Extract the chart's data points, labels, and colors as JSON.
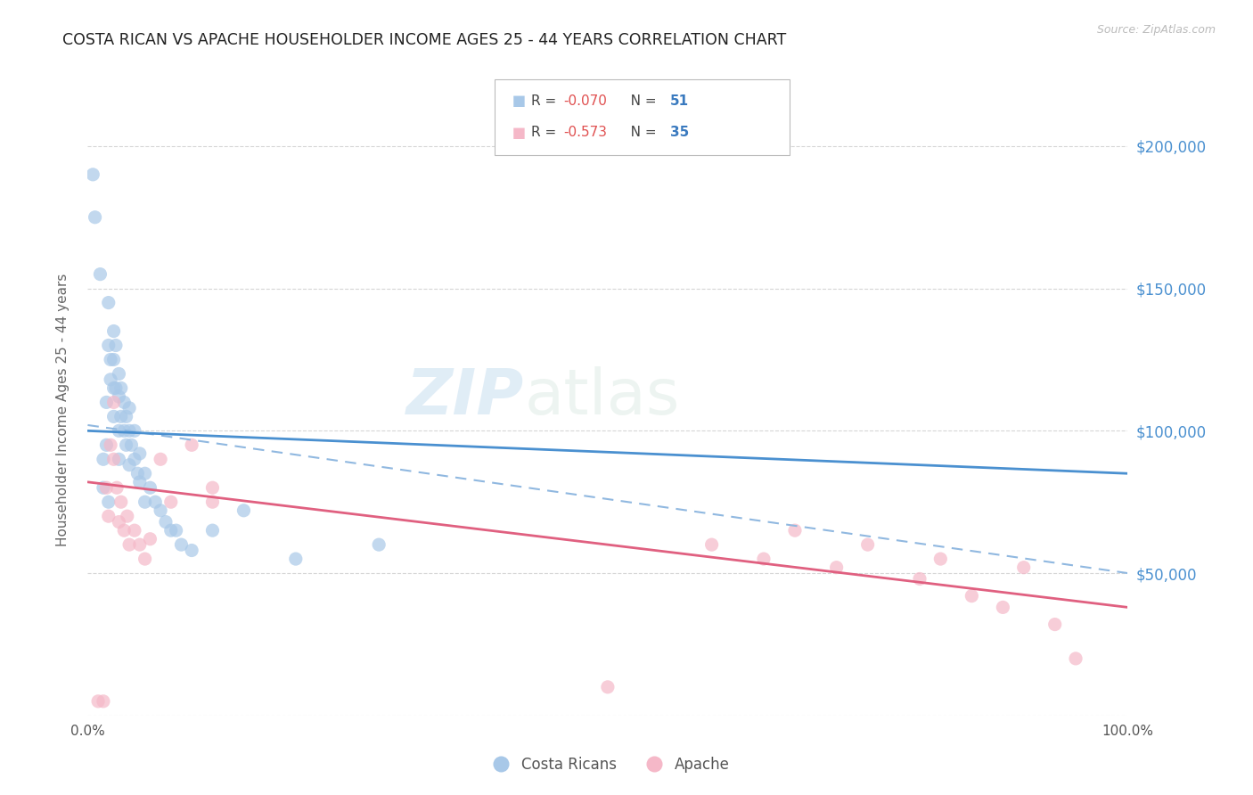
{
  "title": "COSTA RICAN VS APACHE HOUSEHOLDER INCOME AGES 25 - 44 YEARS CORRELATION CHART",
  "source": "Source: ZipAtlas.com",
  "ylabel": "Householder Income Ages 25 - 44 years",
  "legend_R1": "-0.070",
  "legend_N1": "51",
  "legend_R2": "-0.573",
  "legend_N2": "35",
  "legend_label1": "Costa Ricans",
  "legend_label2": "Apache",
  "costa_rican_color": "#a8c8e8",
  "apache_color": "#f5b8c8",
  "trendline_blue_color": "#4a90d0",
  "trendline_pink_color": "#e06080",
  "trendline_dashed_color": "#90b8e0",
  "xlim": [
    0,
    1.0
  ],
  "ylim": [
    0,
    215000
  ],
  "background_color": "#ffffff",
  "grid_color": "#cccccc",
  "watermark_zip": "ZIP",
  "watermark_atlas": "atlas",
  "costa_rican_x": [
    0.005,
    0.007,
    0.012,
    0.015,
    0.015,
    0.018,
    0.018,
    0.02,
    0.02,
    0.02,
    0.022,
    0.022,
    0.025,
    0.025,
    0.025,
    0.025,
    0.027,
    0.027,
    0.03,
    0.03,
    0.03,
    0.03,
    0.032,
    0.032,
    0.035,
    0.035,
    0.037,
    0.037,
    0.04,
    0.04,
    0.04,
    0.042,
    0.045,
    0.045,
    0.048,
    0.05,
    0.05,
    0.055,
    0.055,
    0.06,
    0.065,
    0.07,
    0.075,
    0.08,
    0.085,
    0.09,
    0.1,
    0.12,
    0.15,
    0.2,
    0.28
  ],
  "costa_rican_y": [
    190000,
    175000,
    155000,
    90000,
    80000,
    110000,
    95000,
    145000,
    130000,
    75000,
    125000,
    118000,
    135000,
    125000,
    115000,
    105000,
    130000,
    115000,
    120000,
    112000,
    100000,
    90000,
    115000,
    105000,
    110000,
    100000,
    105000,
    95000,
    108000,
    100000,
    88000,
    95000,
    100000,
    90000,
    85000,
    92000,
    82000,
    85000,
    75000,
    80000,
    75000,
    72000,
    68000,
    65000,
    65000,
    60000,
    58000,
    65000,
    72000,
    55000,
    60000
  ],
  "apache_x": [
    0.01,
    0.015,
    0.018,
    0.02,
    0.022,
    0.025,
    0.025,
    0.028,
    0.03,
    0.032,
    0.035,
    0.038,
    0.04,
    0.045,
    0.05,
    0.055,
    0.06,
    0.07,
    0.08,
    0.1,
    0.12,
    0.12,
    0.5,
    0.6,
    0.65,
    0.68,
    0.72,
    0.75,
    0.8,
    0.82,
    0.85,
    0.88,
    0.9,
    0.93,
    0.95
  ],
  "apache_y": [
    5000,
    5000,
    80000,
    70000,
    95000,
    110000,
    90000,
    80000,
    68000,
    75000,
    65000,
    70000,
    60000,
    65000,
    60000,
    55000,
    62000,
    90000,
    75000,
    95000,
    75000,
    80000,
    10000,
    60000,
    55000,
    65000,
    52000,
    60000,
    48000,
    55000,
    42000,
    38000,
    52000,
    32000,
    20000
  ],
  "blue_trendline": [
    [
      0.0,
      100000
    ],
    [
      1.0,
      85000
    ]
  ],
  "dashed_trendline": [
    [
      0.0,
      102000
    ],
    [
      1.0,
      50000
    ]
  ],
  "pink_trendline": [
    [
      0.0,
      82000
    ],
    [
      1.0,
      38000
    ]
  ]
}
